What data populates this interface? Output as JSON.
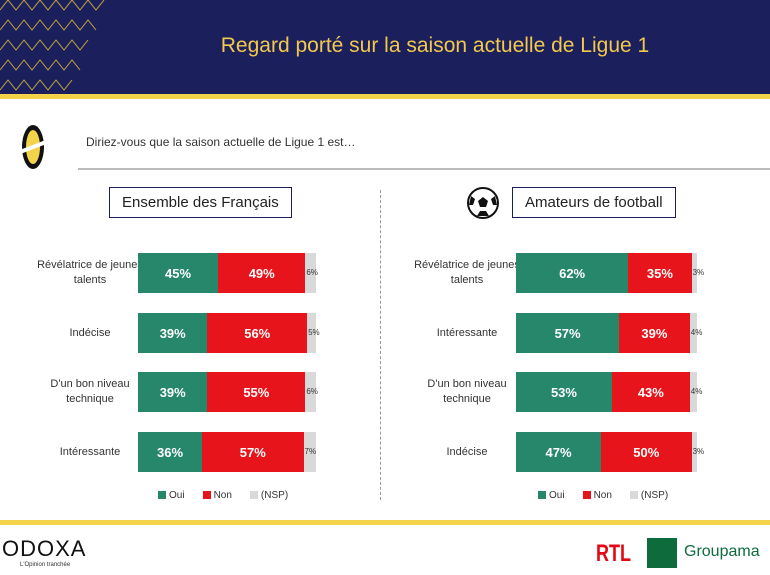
{
  "header": {
    "title": "Regard porté sur la saison actuelle de Ligue 1"
  },
  "question": "Diriez-vous que la saison actuelle de Ligue 1 est…",
  "colors": {
    "oui": "#27876b",
    "non": "#e8141b",
    "nsp": "#d9d9d9"
  },
  "chart_data": [
    {
      "type": "bar",
      "orientation": "horizontal",
      "stacked": true,
      "title": "Ensemble des Français",
      "categories": [
        "Révélatrice de jeunes talents",
        "Indécise",
        "D'un bon niveau technique",
        "Intéressante"
      ],
      "series": [
        {
          "name": "Oui",
          "values": [
            45,
            39,
            39,
            36
          ]
        },
        {
          "name": "Non",
          "values": [
            49,
            56,
            55,
            57
          ]
        },
        {
          "name": "(NSP)",
          "values": [
            6,
            5,
            6,
            7
          ]
        }
      ],
      "legend": "bottom"
    },
    {
      "type": "bar",
      "orientation": "horizontal",
      "stacked": true,
      "title": "Amateurs de football",
      "categories": [
        "Révélatrice de jeunes talents",
        "Intéressante",
        "D'un bon niveau technique",
        "Indécise"
      ],
      "series": [
        {
          "name": "Oui",
          "values": [
            62,
            57,
            53,
            47
          ]
        },
        {
          "name": "Non",
          "values": [
            35,
            39,
            43,
            50
          ]
        },
        {
          "name": "(NSP)",
          "values": [
            3,
            4,
            4,
            3
          ]
        }
      ],
      "legend": "bottom"
    }
  ],
  "footer": {
    "odoxa": "ODOXA",
    "tagline": "L'Opinion tranchée",
    "rtl": "RTL",
    "groupama": "Groupama"
  }
}
